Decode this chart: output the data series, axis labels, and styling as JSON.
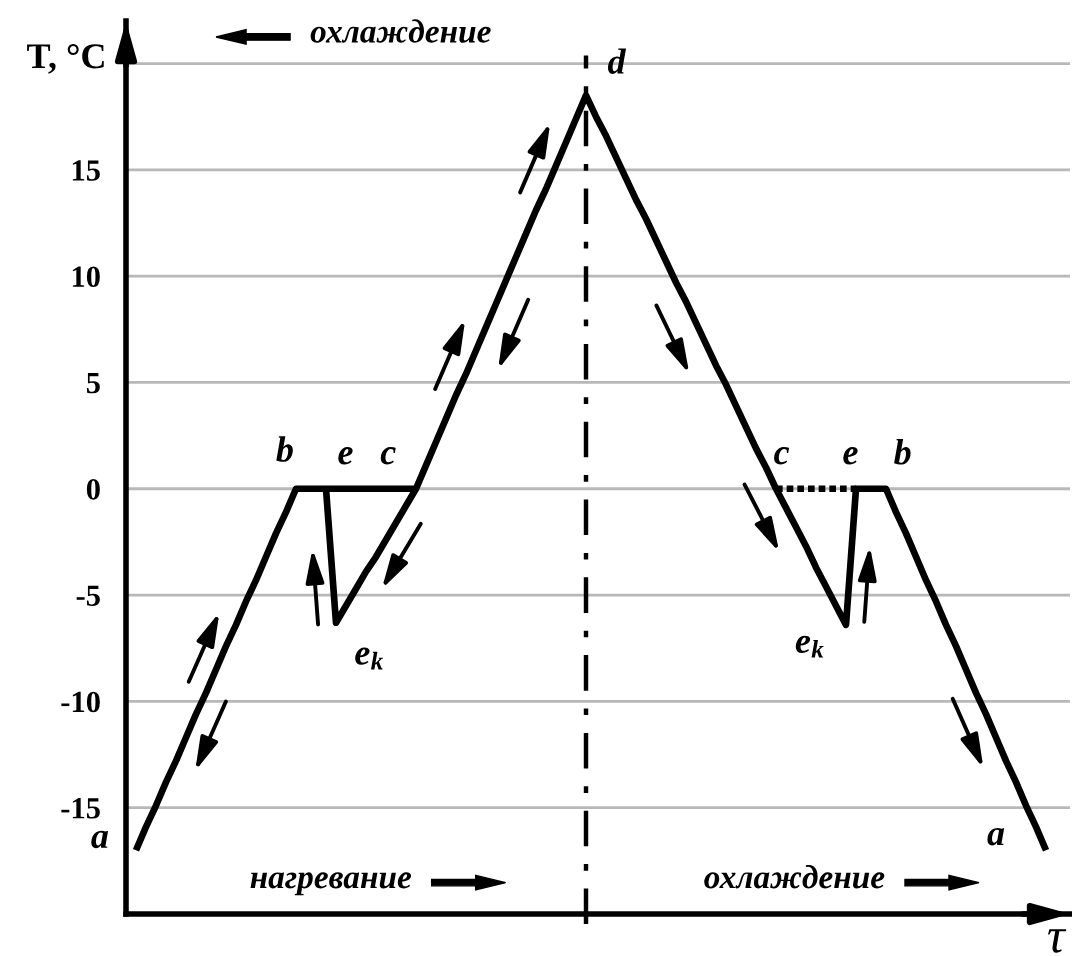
{
  "chart_data": {
    "type": "line",
    "xlabel": "τ",
    "ylabel": "T, °C",
    "categories": [
      null,
      null,
      null,
      null,
      null,
      null,
      null,
      null,
      null,
      null,
      null,
      null,
      null,
      null,
      null,
      null,
      null,
      null,
      null,
      null,
      null,
      null,
      null,
      null,
      null,
      null,
      null,
      null,
      null,
      null,
      null,
      null,
      null,
      null,
      null,
      null,
      null,
      null,
      null,
      null,
      null,
      null,
      null,
      null,
      null,
      null,
      null,
      null,
      null,
      null,
      null,
      null,
      null,
      null,
      null,
      null,
      null,
      null,
      null,
      null,
      null,
      null,
      null,
      null,
      null,
      null,
      null,
      null,
      null,
      null,
      null,
      null,
      null,
      null,
      null,
      null,
      null,
      null,
      null,
      null,
      null,
      null,
      null,
      null,
      null,
      null,
      null,
      null,
      null,
      null,
      null,
      null
    ],
    "ylim": [
      -20,
      22
    ],
    "yticks": [
      {
        "value": 20,
        "label": null
      },
      15,
      10,
      5,
      0,
      -5,
      -10,
      -15
    ],
    "grid": "y",
    "tick_labels": "y",
    "series": [
      {
        "color": "#000000",
        "values": [
          -17,
          -15.9,
          -14.9,
          -13.8,
          -12.8,
          -11.7,
          -10.6,
          -9.6,
          -8.5,
          -7.4,
          -6.4,
          -5.3,
          -4.3,
          -3.2,
          -2.1,
          -1.1,
          0,
          0,
          0,
          0,
          0,
          0,
          0,
          0,
          0,
          0,
          0,
          0,
          0,
          1.1,
          2.2,
          3.3,
          4.4,
          5.4,
          6.5,
          7.6,
          8.7,
          9.8,
          10.9,
          12.0,
          13.1,
          14.1,
          15.2,
          16.3,
          17.4,
          18.5,
          17.5,
          16.6,
          15.6,
          14.6,
          13.6,
          12.7,
          11.7,
          10.7,
          9.7,
          8.8,
          7.8,
          6.8,
          5.8,
          4.9,
          3.9,
          2.9,
          1.9,
          1.0,
          0,
          -0.9,
          -1.8,
          -2.7,
          -3.7,
          -4.6,
          -5.5,
          -6.4,
          0,
          0,
          0,
          0,
          -1.1,
          -2.1,
          -3.2,
          -4.3,
          -5.3,
          -6.4,
          -7.4,
          -8.5,
          -9.6,
          -10.6,
          -11.7,
          -12.8,
          -13.8,
          -14.9,
          -15.9,
          -17
        ],
        "value_labels": [
          "a",
          null,
          null,
          null,
          null,
          null,
          null,
          null,
          null,
          null,
          null,
          null,
          null,
          null,
          null,
          null,
          "b",
          null,
          null,
          null,
          null,
          null,
          null,
          null,
          null,
          null,
          null,
          null,
          "c",
          null,
          null,
          null,
          null,
          null,
          null,
          null,
          null,
          null,
          null,
          null,
          null,
          null,
          null,
          null,
          null,
          "d",
          null,
          null,
          null,
          null,
          null,
          null,
          null,
          null,
          null,
          null,
          null,
          null,
          null,
          null,
          null,
          null,
          null,
          null,
          "c",
          null,
          null,
          null,
          null,
          null,
          null,
          "e$_{k}$",
          "e",
          null,
          null,
          "b",
          null,
          null,
          null,
          null,
          null,
          null,
          null,
          null,
          null,
          null,
          null,
          null,
          null,
          null,
          null,
          "a"
        ]
      },
      {
        "color": "#000000",
        "values": [
          null,
          null,
          null,
          null,
          null,
          null,
          null,
          null,
          null,
          null,
          null,
          null,
          null,
          null,
          null,
          null,
          null,
          null,
          null,
          0,
          -6.3,
          -5.5,
          -4.7,
          -3.9,
          -3.2,
          -2.4,
          -1.6,
          -0.8,
          0,
          null,
          null,
          null,
          null,
          null,
          null,
          null,
          null,
          null,
          null,
          null,
          null,
          null,
          null,
          null,
          null,
          null,
          null,
          null,
          null,
          null,
          null,
          null,
          null,
          null,
          null,
          null,
          null,
          null,
          null,
          null,
          null,
          null,
          null,
          null,
          null,
          null,
          null,
          null,
          null,
          null,
          null,
          null,
          null,
          null,
          null,
          null,
          null,
          null,
          null,
          null,
          null,
          null,
          null,
          null,
          null,
          null,
          null,
          null,
          null,
          null,
          null,
          null
        ],
        "value_labels": [
          null,
          null,
          null,
          null,
          null,
          null,
          null,
          null,
          null,
          null,
          null,
          null,
          null,
          null,
          null,
          null,
          null,
          null,
          null,
          "e",
          "e$_{k}$",
          null,
          null,
          null,
          null,
          null,
          null,
          null,
          null,
          null,
          null,
          null,
          null,
          null,
          null,
          null,
          null,
          null,
          null,
          null,
          null,
          null,
          null,
          null,
          null,
          null,
          null,
          null,
          null,
          null,
          null,
          null,
          null,
          null,
          null,
          null,
          null,
          null,
          null,
          null,
          null,
          null,
          null,
          null,
          null,
          null,
          null,
          null,
          null,
          null,
          null,
          null,
          null,
          null,
          null,
          null,
          null,
          null,
          null,
          null,
          null,
          null,
          null,
          null,
          null,
          null,
          null,
          null,
          null,
          null,
          null,
          null
        ]
      },
      {
        "color": "#000000",
        "line_style": "dotted",
        "values": [
          null,
          null,
          null,
          null,
          null,
          null,
          null,
          null,
          null,
          null,
          null,
          null,
          null,
          null,
          null,
          null,
          null,
          null,
          null,
          null,
          null,
          null,
          null,
          null,
          null,
          null,
          null,
          null,
          null,
          null,
          null,
          null,
          null,
          null,
          null,
          null,
          null,
          null,
          null,
          null,
          null,
          null,
          null,
          null,
          null,
          null,
          null,
          null,
          null,
          null,
          null,
          null,
          null,
          null,
          null,
          null,
          null,
          null,
          null,
          null,
          null,
          null,
          null,
          null,
          0,
          0,
          0,
          0,
          0,
          0,
          0,
          0,
          0,
          null,
          null,
          null,
          null,
          null,
          null,
          null,
          null,
          null,
          null,
          null,
          null,
          null,
          null,
          null,
          null,
          null,
          null,
          null
        ]
      }
    ],
    "annotations": [
      "охлаждение",
      "нагревание",
      "охлаждение"
    ]
  }
}
